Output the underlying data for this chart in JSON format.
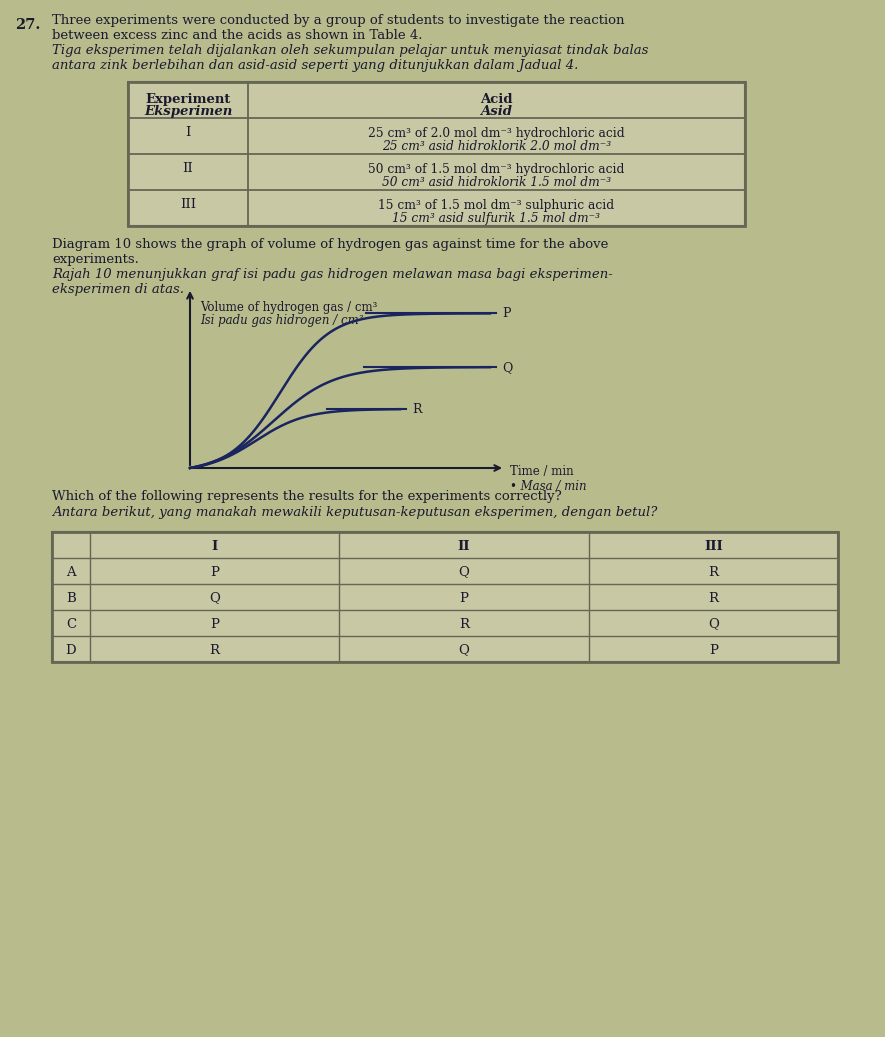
{
  "bg_color": "#b8bc8c",
  "text_color": "#1a1a2e",
  "question_number": "27.",
  "title_line1_en1": "Three experiments were conducted by a group of students to investigate the reaction",
  "title_line1_en2": "between excess zinc and the acids as shown in Table 4.",
  "title_line1_ms1": "Tiga eksperimen telah dijalankan oleh sekumpulan pelajar untuk menyiasat tindak balas",
  "title_line1_ms2": "antara zink berlebihan dan asid-asid seperti yang ditunjukkan dalam Jadual 4.",
  "table_rows": [
    [
      "I",
      "25 cm³ of 2.0 mol dm⁻³ hydrochloric acid",
      "25 cm³ asid hidroklorik 2.0 mol dm⁻³"
    ],
    [
      "II",
      "50 cm³ of 1.5 mol dm⁻³ hydrochloric acid",
      "50 cm³ asid hidroklorik 1.5 mol dm⁻³"
    ],
    [
      "III",
      "15 cm³ of 1.5 mol dm⁻³ sulphuric acid",
      "15 cm³ asid sulfurik 1.5 mol dm⁻³"
    ]
  ],
  "diagram_en1": "Diagram 10 shows the graph of volume of hydrogen gas against time for the above",
  "diagram_en2": "experiments.",
  "diagram_ms1": "Rajah 10 menunjukkan graf isi padu gas hidrogen melawan masa bagi eksperimen-",
  "diagram_ms2": "eksperimen di atas.",
  "ylabel_en": "Volume of hydrogen gas / cm³",
  "ylabel_ms": "Isi padu gas hidrogen / cm³",
  "xlabel_en": "Time / min",
  "xlabel_ms": "• Masa / min",
  "question_en": "Which of the following represents the results for the experiments correctly?",
  "question_ms": "Antara berikut, yang manakah mewakili keputusan-keputusan eksperimen, dengan betul?",
  "answer_rows": [
    [
      "A",
      "P",
      "Q",
      "R"
    ],
    [
      "B",
      "Q",
      "P",
      "R"
    ],
    [
      "C",
      "P",
      "R",
      "Q"
    ],
    [
      "D",
      "R",
      "Q",
      "P"
    ]
  ],
  "curve_color": "#1a2560",
  "table_bg": "#c8c8a4",
  "table_border": "#666655"
}
